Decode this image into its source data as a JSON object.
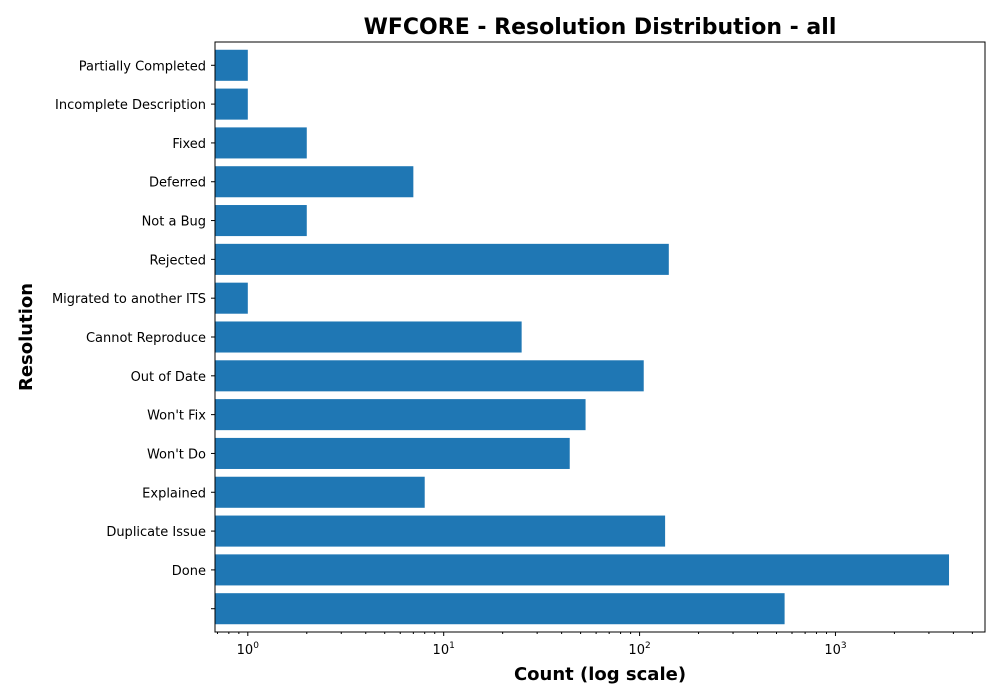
{
  "chart_data": {
    "type": "bar",
    "orientation": "horizontal",
    "title": "WFCORE - Resolution Distribution - all",
    "xlabel": "Count (log scale)",
    "ylabel": "Resolution",
    "x_scale": "log",
    "xlim": [
      0.68,
      5800
    ],
    "x_ticks": [
      {
        "base": "10",
        "exp": "0"
      },
      {
        "base": "10",
        "exp": "1"
      },
      {
        "base": "10",
        "exp": "2"
      },
      {
        "base": "10",
        "exp": "3"
      }
    ],
    "categories": [
      "",
      "Done",
      "Duplicate Issue",
      "Explained",
      "Won't Do",
      "Won't Fix",
      "Out of Date",
      "Cannot Reproduce",
      "Migrated to another ITS",
      "Rejected",
      "Not a Bug",
      "Deferred",
      "Fixed",
      "Incomplete Description",
      "Partially Completed"
    ],
    "values": [
      550,
      3800,
      135,
      8,
      44,
      53,
      105,
      25,
      1,
      141,
      2,
      7,
      2,
      1,
      1
    ],
    "bar_color": "#1f77b4",
    "grid": false
  }
}
